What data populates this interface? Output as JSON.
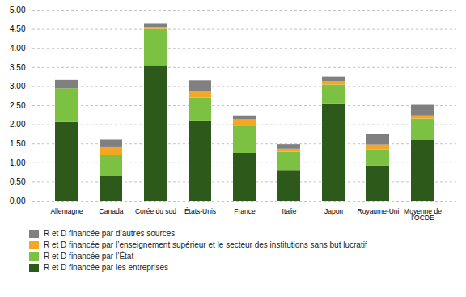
{
  "chart_data": {
    "type": "bar",
    "stacked": true,
    "categories": [
      "Allemagne",
      "Canada",
      "Corée du sud",
      "États-Unis",
      "France",
      "Italie",
      "Japon",
      "Royaume-Uni",
      "Moyenne de\nl’OCDE"
    ],
    "series": [
      {
        "name": "R et D financée par les entreprises",
        "color": "#2d5a1b",
        "values": [
          2.06,
          0.65,
          3.55,
          2.1,
          1.25,
          0.8,
          2.55,
          0.92,
          1.6
        ]
      },
      {
        "name": "R et D financée par l’État",
        "color": "#7dc142",
        "values": [
          0.88,
          0.55,
          0.95,
          0.6,
          0.7,
          0.48,
          0.49,
          0.42,
          0.55
        ]
      },
      {
        "name": "R et D financée par l’enseignement supérieur et le secteur des institutions sans but lucratif",
        "color": "#f5a623",
        "values": [
          0.0,
          0.2,
          0.05,
          0.17,
          0.18,
          0.08,
          0.09,
          0.13,
          0.08
        ]
      },
      {
        "name": "R et D financée par d’autres sources",
        "color": "#808080",
        "values": [
          0.22,
          0.2,
          0.08,
          0.28,
          0.1,
          0.12,
          0.12,
          0.28,
          0.28
        ]
      }
    ],
    "ylim": [
      0,
      5.0
    ],
    "yticks": [
      {
        "value": 0.0,
        "label": "0.00"
      },
      {
        "value": 0.5,
        "label": "0.50"
      },
      {
        "value": 1.0,
        "label": "1.00"
      },
      {
        "value": 1.5,
        "label": "1.50"
      },
      {
        "value": 2.0,
        "label": "2.00"
      },
      {
        "value": 2.5,
        "label": "2.50"
      },
      {
        "value": 3.0,
        "label": "3.00"
      },
      {
        "value": 3.5,
        "label": "3.50"
      },
      {
        "value": 4.0,
        "label": "4.00"
      },
      {
        "value": 4.5,
        "label": "4.50"
      },
      {
        "value": 5.0,
        "label": "5.00"
      }
    ],
    "grid": true,
    "legend": "bottom"
  }
}
